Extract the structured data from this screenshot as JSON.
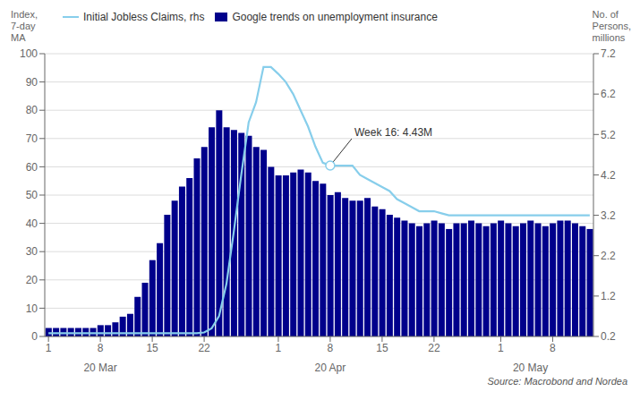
{
  "chart_data": {
    "type": "bar",
    "legend": "upper left",
    "grid": true,
    "y_label": "Index,\n7-day\nMA",
    "y2_label": "No. of\nPersons,\nmillions",
    "source": "Source: Macrobond and Nordea",
    "categories": [
      "1",
      null,
      null,
      null,
      null,
      null,
      null,
      "8",
      null,
      null,
      null,
      null,
      null,
      null,
      "15",
      null,
      null,
      null,
      null,
      null,
      null,
      "22",
      null,
      null,
      null,
      null,
      null,
      null,
      null,
      null,
      null,
      "1",
      null,
      null,
      null,
      null,
      null,
      null,
      "8",
      null,
      null,
      null,
      null,
      null,
      null,
      "15",
      null,
      null,
      null,
      null,
      null,
      null,
      "22",
      null,
      null,
      null,
      null,
      null,
      null,
      null,
      null,
      "1",
      null,
      null,
      null,
      null,
      null,
      null,
      "8",
      null,
      null,
      null,
      null,
      null
    ],
    "month_categories": [
      null,
      null,
      null,
      null,
      null,
      null,
      null,
      "20 Mar",
      null,
      null,
      null,
      null,
      null,
      null,
      null,
      null,
      null,
      null,
      null,
      null,
      null,
      null,
      null,
      null,
      null,
      null,
      null,
      null,
      null,
      null,
      null,
      null,
      null,
      null,
      null,
      null,
      null,
      null,
      "20 Apr",
      null,
      null,
      null,
      null,
      null,
      null,
      null,
      null,
      null,
      null,
      null,
      null,
      null,
      null,
      null,
      null,
      null,
      null,
      null,
      null,
      null,
      null,
      null,
      null,
      null,
      null,
      "20 May",
      null,
      null,
      null,
      null,
      null,
      null,
      null,
      null
    ],
    "ylim": [
      0,
      100
    ],
    "yticks": [
      0,
      10,
      20,
      30,
      40,
      50,
      60,
      70,
      80,
      90,
      100
    ],
    "y2lim": [
      0.2,
      7.2
    ],
    "y2ticks": [
      0.2,
      1.2,
      2.2,
      3.2,
      4.2,
      5.2,
      6.2,
      7.2
    ],
    "series": [
      {
        "name": "Initial Jobless Claims, rhs",
        "type": "line",
        "axis": "y2",
        "color": "#87CEEB",
        "values": [
          0.28,
          0.28,
          0.28,
          0.28,
          0.28,
          0.28,
          0.28,
          0.28,
          0.28,
          0.28,
          0.28,
          0.28,
          0.28,
          0.28,
          0.28,
          0.28,
          0.28,
          0.28,
          0.28,
          0.28,
          0.28,
          0.3,
          0.4,
          0.7,
          1.5,
          2.8,
          4.2,
          5.5,
          6.0,
          6.87,
          6.87,
          6.7,
          6.5,
          6.2,
          5.8,
          5.4,
          4.9,
          4.5,
          4.43,
          4.43,
          4.43,
          4.43,
          4.2,
          4.1,
          4.0,
          3.9,
          3.8,
          3.6,
          3.5,
          3.4,
          3.3,
          3.3,
          3.3,
          3.25,
          3.2,
          3.2,
          3.2,
          3.2,
          3.2,
          3.2,
          3.2,
          3.2,
          3.2,
          3.2,
          3.2,
          3.2,
          3.2,
          3.2,
          3.2,
          3.2,
          3.2,
          3.2,
          3.2,
          3.2
        ]
      },
      {
        "name": "Google trends on unemployment insurance",
        "type": "bar",
        "color": "#00008B",
        "values": [
          3,
          3,
          3,
          3,
          3,
          3,
          3,
          4,
          4,
          5,
          7,
          8,
          14,
          19,
          27,
          33,
          43,
          48,
          53,
          56,
          63,
          67,
          74,
          80,
          74,
          73,
          72,
          71,
          67,
          66,
          60,
          57,
          57,
          58,
          59,
          58,
          55,
          54,
          50,
          51,
          49,
          48,
          48,
          49,
          46,
          45,
          43,
          42,
          41,
          40,
          39,
          40,
          41,
          40,
          38,
          40,
          40,
          41,
          40,
          39,
          40,
          41,
          40,
          39,
          40,
          41,
          40,
          39,
          40,
          41,
          41,
          40,
          39,
          38
        ]
      }
    ],
    "annotations": [
      {
        "text": "Week 16: 4.43M",
        "x": 38,
        "y": 4.43,
        "axis": "y2"
      }
    ]
  }
}
